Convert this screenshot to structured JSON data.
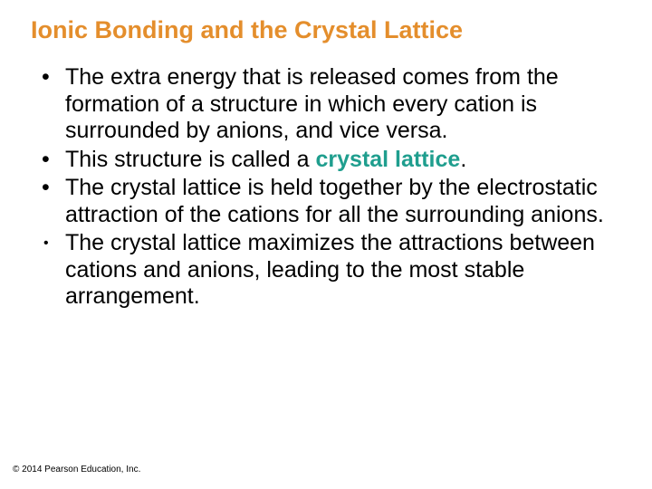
{
  "title": {
    "text": "Ionic Bonding and the Crystal Lattice",
    "color": "#e48e2c"
  },
  "bullets": [
    {
      "pre": "The extra energy that is released comes from the formation of a structure in which every cation is surrounded by anions, and vice versa.",
      "term": "",
      "post": "",
      "small_bullet": false
    },
    {
      "pre": "This structure is called a ",
      "term": "crystal lattice",
      "post": ".",
      "small_bullet": false
    },
    {
      "pre": "The crystal lattice is held together by the electrostatic attraction of the cations for all the surrounding anions.",
      "term": "",
      "post": "",
      "small_bullet": false
    },
    {
      "pre": "The crystal lattice maximizes the attractions between cations and anions, leading to the most stable arrangement.",
      "term": "",
      "post": "",
      "small_bullet": true
    }
  ],
  "term_color": "#1f9e8e",
  "body_color": "#000000",
  "copyright": "© 2014 Pearson Education, Inc."
}
